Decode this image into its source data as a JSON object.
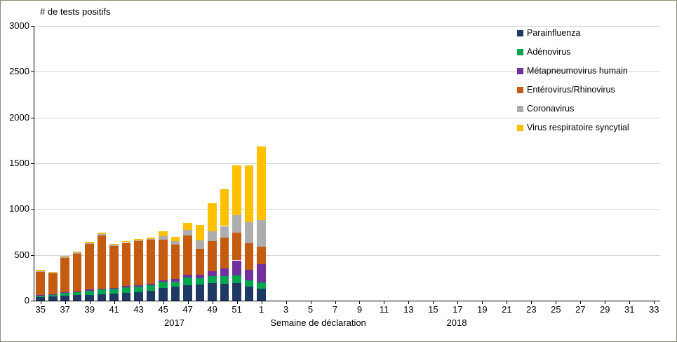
{
  "chart_data": {
    "type": "bar",
    "stacked": true,
    "title": "# de tests positifs",
    "xlabel": "Semaine de déclaration",
    "year_labels": [
      "2017",
      "2018"
    ],
    "ylim": [
      0,
      3000
    ],
    "ytick_interval": 500,
    "ytick_labels": [
      "0",
      "500",
      "1000",
      "1500",
      "2000",
      "2500",
      "3000"
    ],
    "tick_step": 2,
    "xtick_labels": [
      "35",
      "37",
      "39",
      "41",
      "43",
      "45",
      "47",
      "49",
      "51",
      "1",
      "3",
      "5",
      "7",
      "9",
      "11",
      "13",
      "15",
      "17",
      "19",
      "21",
      "23",
      "25",
      "27",
      "29",
      "31",
      "33"
    ],
    "categories": [
      35,
      36,
      37,
      38,
      39,
      40,
      41,
      42,
      43,
      44,
      45,
      46,
      47,
      48,
      49,
      50,
      51,
      52,
      1,
      2,
      3,
      4,
      5,
      6,
      7,
      8,
      9,
      10,
      11,
      12,
      13,
      14,
      15,
      16,
      17,
      18,
      19,
      20,
      21,
      22,
      23,
      24,
      25,
      26,
      27,
      28,
      29,
      30,
      31,
      32,
      33
    ],
    "grid": true,
    "legend_position": "top-right-inside",
    "series": [
      {
        "name": "Parainfluenza",
        "color": "#1F3864",
        "values": [
          40,
          45,
          55,
          60,
          65,
          70,
          75,
          85,
          95,
          110,
          140,
          150,
          170,
          175,
          190,
          185,
          190,
          150,
          130,
          0,
          0,
          0,
          0,
          0,
          0,
          0,
          0,
          0,
          0,
          0,
          0,
          0,
          0,
          0,
          0,
          0,
          0,
          0,
          0,
          0,
          0,
          0,
          0,
          0,
          0,
          0,
          0,
          0,
          0,
          0,
          0
        ]
      },
      {
        "name": "Adénovirus",
        "color": "#00A550",
        "values": [
          15,
          20,
          30,
          35,
          45,
          50,
          55,
          60,
          60,
          60,
          65,
          60,
          80,
          70,
          75,
          80,
          85,
          70,
          70,
          0,
          0,
          0,
          0,
          0,
          0,
          0,
          0,
          0,
          0,
          0,
          0,
          0,
          0,
          0,
          0,
          0,
          0,
          0,
          0,
          0,
          0,
          0,
          0,
          0,
          0,
          0,
          0,
          0,
          0,
          0,
          0
        ]
      },
      {
        "name": "Métapneumovirus humain",
        "color": "#7030A0",
        "values": [
          5,
          5,
          5,
          8,
          10,
          10,
          10,
          12,
          15,
          15,
          20,
          25,
          30,
          40,
          55,
          90,
          165,
          120,
          200,
          0,
          0,
          0,
          0,
          0,
          0,
          0,
          0,
          0,
          0,
          0,
          0,
          0,
          0,
          0,
          0,
          0,
          0,
          0,
          0,
          0,
          0,
          0,
          0,
          0,
          0,
          0,
          0,
          0,
          0,
          0,
          0
        ]
      },
      {
        "name": "Entérovirus/Rhinovirus",
        "color": "#C55A11",
        "values": [
          255,
          225,
          380,
          410,
          500,
          580,
          460,
          470,
          480,
          480,
          440,
          380,
          430,
          280,
          330,
          330,
          300,
          290,
          190,
          0,
          0,
          0,
          0,
          0,
          0,
          0,
          0,
          0,
          0,
          0,
          0,
          0,
          0,
          0,
          0,
          0,
          0,
          0,
          0,
          0,
          0,
          0,
          0,
          0,
          0,
          0,
          0,
          0,
          0,
          0,
          0
        ]
      },
      {
        "name": "Coronavirus",
        "color": "#ADADAD",
        "values": [
          10,
          10,
          10,
          12,
          10,
          15,
          10,
          12,
          10,
          10,
          40,
          35,
          60,
          90,
          110,
          130,
          190,
          230,
          290,
          0,
          0,
          0,
          0,
          0,
          0,
          0,
          0,
          0,
          0,
          0,
          0,
          0,
          0,
          0,
          0,
          0,
          0,
          0,
          0,
          0,
          0,
          0,
          0,
          0,
          0,
          0,
          0,
          0,
          0,
          0,
          0
        ]
      },
      {
        "name": "Virus respiratoire syncytial",
        "color": "#FFC000",
        "values": [
          10,
          5,
          10,
          10,
          10,
          15,
          10,
          12,
          15,
          15,
          55,
          50,
          80,
          175,
          300,
          405,
          550,
          620,
          800,
          0,
          0,
          0,
          0,
          0,
          0,
          0,
          0,
          0,
          0,
          0,
          0,
          0,
          0,
          0,
          0,
          0,
          0,
          0,
          0,
          0,
          0,
          0,
          0,
          0,
          0,
          0,
          0,
          0,
          0,
          0,
          0
        ]
      }
    ]
  }
}
